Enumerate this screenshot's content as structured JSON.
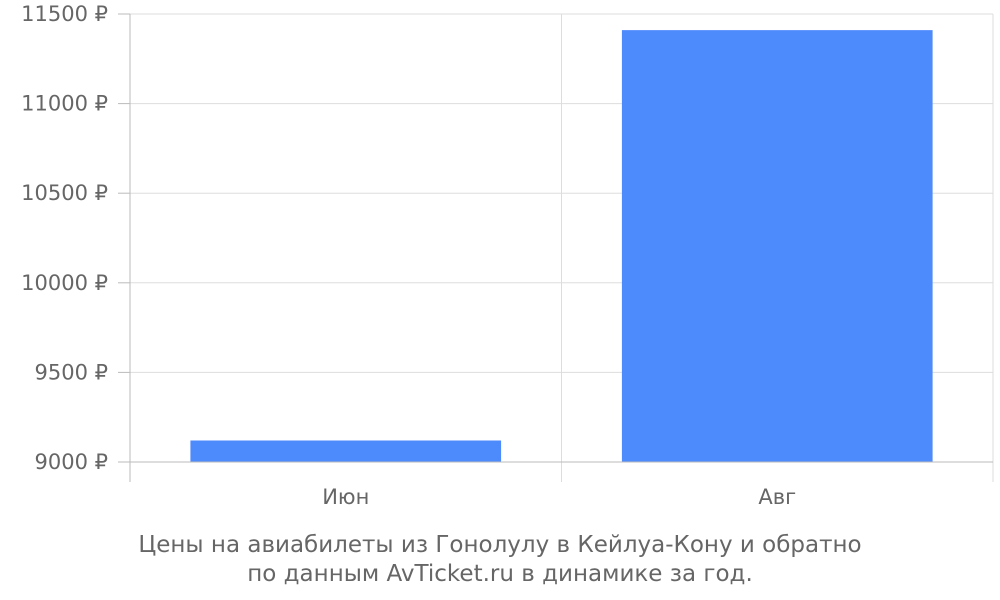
{
  "chart_data": {
    "type": "bar",
    "categories": [
      "Июн",
      "Авг"
    ],
    "values": [
      9120,
      11410
    ],
    "ylim": [
      9000,
      11500
    ],
    "y_ticks": [
      9000,
      9500,
      10000,
      10500,
      11000,
      11500
    ],
    "y_tick_suffix": " ₽",
    "grid": true,
    "bar_color": "#4d8afb",
    "title": "",
    "xlabel": "",
    "ylabel": ""
  },
  "caption": {
    "line1": "Цены на авиабилеты из Гонолулу в Кейлуа-Кону и обратно",
    "line2": "по данным AvTicket.ru в динамике за год."
  }
}
